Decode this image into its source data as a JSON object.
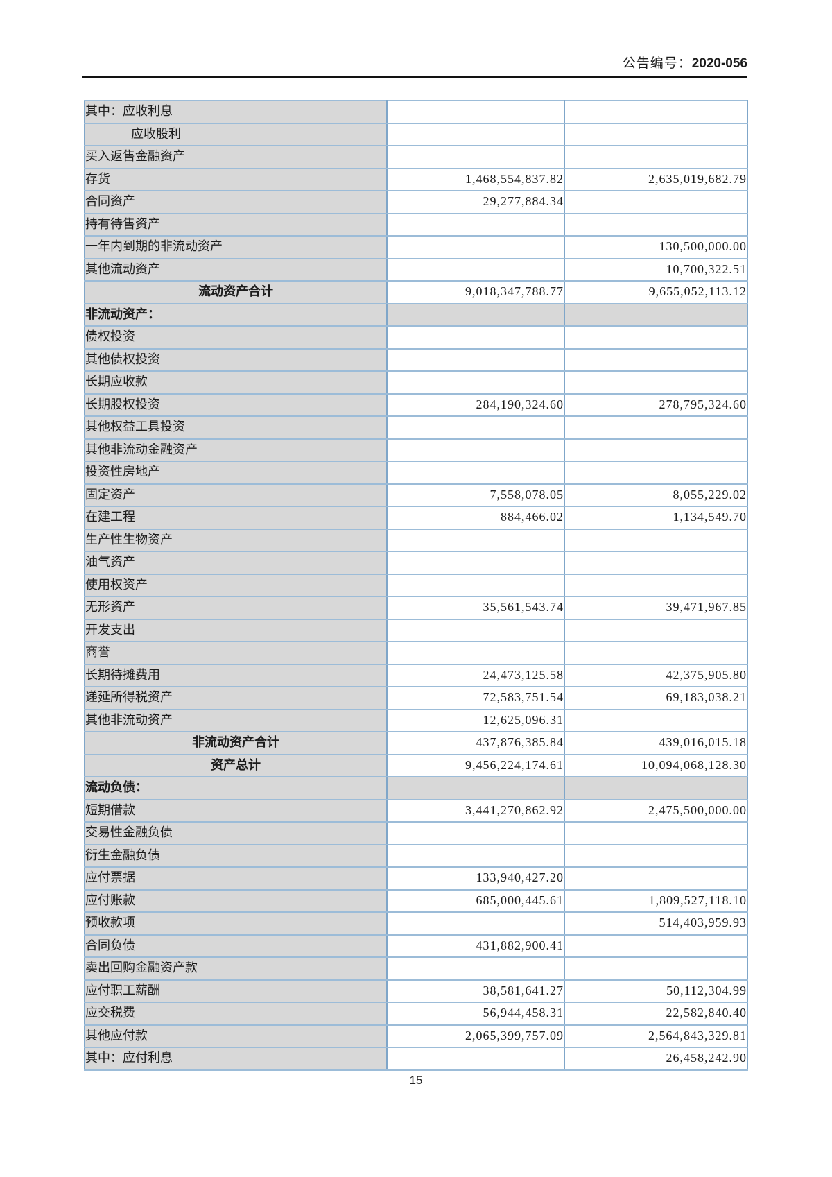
{
  "header": {
    "announcement_label": "公告编号：",
    "announcement_number": "2020-056"
  },
  "footer": {
    "page_number": "15"
  },
  "table": {
    "columns": [
      "item",
      "current_amount",
      "prior_amount"
    ],
    "rows": [
      {
        "type": "item",
        "label": "其中：应收利息",
        "current": "",
        "prior": ""
      },
      {
        "type": "indent",
        "label": "应收股利",
        "current": "",
        "prior": ""
      },
      {
        "type": "item",
        "label": "买入返售金融资产",
        "current": "",
        "prior": ""
      },
      {
        "type": "item",
        "label": "存货",
        "current": "1,468,554,837.82",
        "prior": "2,635,019,682.79"
      },
      {
        "type": "item",
        "label": "合同资产",
        "current": "29,277,884.34",
        "prior": ""
      },
      {
        "type": "item",
        "label": "持有待售资产",
        "current": "",
        "prior": ""
      },
      {
        "type": "item",
        "label": "一年内到期的非流动资产",
        "current": "",
        "prior": "130,500,000.00"
      },
      {
        "type": "item",
        "label": "其他流动资产",
        "current": "",
        "prior": "10,700,322.51"
      },
      {
        "type": "subtotal",
        "label": "流动资产合计",
        "current": "9,018,347,788.77",
        "prior": "9,655,052,113.12"
      },
      {
        "type": "section",
        "label": "非流动资产：",
        "current": "",
        "prior": ""
      },
      {
        "type": "item",
        "label": "债权投资",
        "current": "",
        "prior": ""
      },
      {
        "type": "item",
        "label": "其他债权投资",
        "current": "",
        "prior": ""
      },
      {
        "type": "item",
        "label": "长期应收款",
        "current": "",
        "prior": ""
      },
      {
        "type": "item",
        "label": "长期股权投资",
        "current": "284,190,324.60",
        "prior": "278,795,324.60"
      },
      {
        "type": "item",
        "label": "其他权益工具投资",
        "current": "",
        "prior": ""
      },
      {
        "type": "item",
        "label": "其他非流动金融资产",
        "current": "",
        "prior": ""
      },
      {
        "type": "item",
        "label": "投资性房地产",
        "current": "",
        "prior": ""
      },
      {
        "type": "item",
        "label": "固定资产",
        "current": "7,558,078.05",
        "prior": "8,055,229.02"
      },
      {
        "type": "item",
        "label": "在建工程",
        "current": "884,466.02",
        "prior": "1,134,549.70"
      },
      {
        "type": "item",
        "label": "生产性生物资产",
        "current": "",
        "prior": ""
      },
      {
        "type": "item",
        "label": "油气资产",
        "current": "",
        "prior": ""
      },
      {
        "type": "item",
        "label": "使用权资产",
        "current": "",
        "prior": ""
      },
      {
        "type": "item",
        "label": "无形资产",
        "current": "35,561,543.74",
        "prior": "39,471,967.85"
      },
      {
        "type": "item",
        "label": "开发支出",
        "current": "",
        "prior": ""
      },
      {
        "type": "item",
        "label": "商誉",
        "current": "",
        "prior": ""
      },
      {
        "type": "item",
        "label": "长期待摊费用",
        "current": "24,473,125.58",
        "prior": "42,375,905.80"
      },
      {
        "type": "item",
        "label": "递延所得税资产",
        "current": "72,583,751.54",
        "prior": "69,183,038.21"
      },
      {
        "type": "item",
        "label": "其他非流动资产",
        "current": "12,625,096.31",
        "prior": ""
      },
      {
        "type": "subtotal",
        "label": "非流动资产合计",
        "current": "437,876,385.84",
        "prior": "439,016,015.18"
      },
      {
        "type": "subtotal",
        "label": "资产总计",
        "current": "9,456,224,174.61",
        "prior": "10,094,068,128.30"
      },
      {
        "type": "section",
        "label": "流动负债：",
        "current": "",
        "prior": ""
      },
      {
        "type": "item",
        "label": "短期借款",
        "current": "3,441,270,862.92",
        "prior": "2,475,500,000.00"
      },
      {
        "type": "item",
        "label": "交易性金融负债",
        "current": "",
        "prior": ""
      },
      {
        "type": "item",
        "label": "衍生金融负债",
        "current": "",
        "prior": ""
      },
      {
        "type": "item",
        "label": "应付票据",
        "current": "133,940,427.20",
        "prior": ""
      },
      {
        "type": "item",
        "label": "应付账款",
        "current": "685,000,445.61",
        "prior": "1,809,527,118.10"
      },
      {
        "type": "item",
        "label": "预收款项",
        "current": "",
        "prior": "514,403,959.93"
      },
      {
        "type": "item",
        "label": "合同负债",
        "current": "431,882,900.41",
        "prior": ""
      },
      {
        "type": "item",
        "label": "卖出回购金融资产款",
        "current": "",
        "prior": ""
      },
      {
        "type": "item",
        "label": "应付职工薪酬",
        "current": "38,581,641.27",
        "prior": "50,112,304.99"
      },
      {
        "type": "item",
        "label": "应交税费",
        "current": "56,944,458.31",
        "prior": "22,582,840.40"
      },
      {
        "type": "item",
        "label": "其他应付款",
        "current": "2,065,399,757.09",
        "prior": "2,564,843,329.81"
      },
      {
        "type": "item",
        "label": "其中：应付利息",
        "current": "",
        "prior": "26,458,242.90"
      }
    ]
  }
}
